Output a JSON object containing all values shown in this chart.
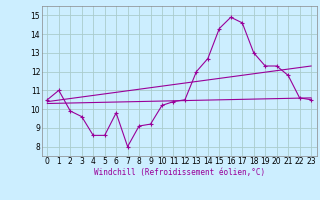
{
  "xlabel": "Windchill (Refroidissement éolien,°C)",
  "background_color": "#cceeff",
  "grid_color": "#aacccc",
  "line_color": "#990099",
  "xlim": [
    -0.5,
    23.5
  ],
  "ylim": [
    7.5,
    15.5
  ],
  "xticks": [
    0,
    1,
    2,
    3,
    4,
    5,
    6,
    7,
    8,
    9,
    10,
    11,
    12,
    13,
    14,
    15,
    16,
    17,
    18,
    19,
    20,
    21,
    22,
    23
  ],
  "yticks": [
    8,
    9,
    10,
    11,
    12,
    13,
    14,
    15
  ],
  "series1_x": [
    0,
    1,
    2,
    3,
    4,
    5,
    6,
    7,
    8,
    9,
    10,
    11,
    12,
    13,
    14,
    15,
    16,
    17,
    18,
    19,
    20,
    21,
    22,
    23
  ],
  "series1_y": [
    10.5,
    11.0,
    9.9,
    9.6,
    8.6,
    8.6,
    9.8,
    8.0,
    9.1,
    9.2,
    10.2,
    10.4,
    10.5,
    12.0,
    12.7,
    14.3,
    14.9,
    14.6,
    13.0,
    12.3,
    12.3,
    11.8,
    10.6,
    10.5
  ],
  "series2_x": [
    0,
    23
  ],
  "series2_y": [
    10.4,
    12.3
  ],
  "series3_x": [
    0,
    23
  ],
  "series3_y": [
    10.3,
    10.6
  ]
}
